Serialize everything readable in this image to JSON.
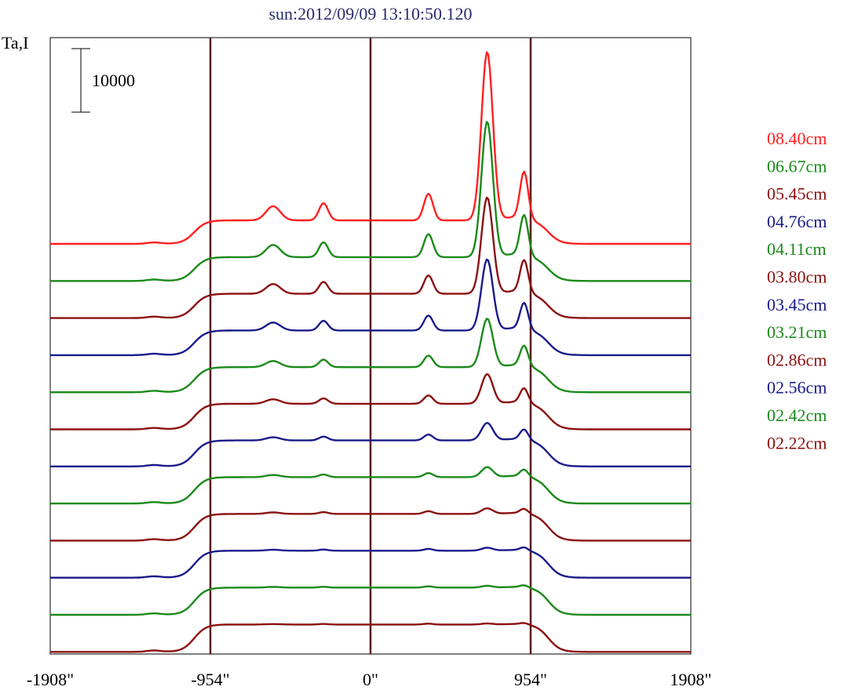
{
  "chart_data": {
    "type": "line",
    "title": "sun:2012/09/09 13:10:50.120",
    "ylabel": "Ta,I",
    "scale_bar": {
      "label": "10000",
      "value": 10000
    },
    "x_ticks": [
      {
        "label": "-1908\"",
        "value": -1908
      },
      {
        "label": "-954\"",
        "value": -954
      },
      {
        "label": "0\"",
        "value": 0
      },
      {
        "label": "954\"",
        "value": 954
      },
      {
        "label": "1908\"",
        "value": 1908
      }
    ],
    "vertical_lines": [
      -954,
      0,
      954
    ],
    "xlim": [
      -1908,
      1908
    ],
    "grid": false,
    "legend_position": "right",
    "legend": [
      {
        "label": "08.40cm",
        "color": "#ff2020"
      },
      {
        "label": "06.67cm",
        "color": "#1a8a1a"
      },
      {
        "label": "05.45cm",
        "color": "#8b1010"
      },
      {
        "label": "04.76cm",
        "color": "#1a1a8a"
      },
      {
        "label": "04.11cm",
        "color": "#1a8a1a"
      },
      {
        "label": "03.80cm",
        "color": "#8b1010"
      },
      {
        "label": "03.45cm",
        "color": "#1a1a8a"
      },
      {
        "label": "03.21cm",
        "color": "#1a8a1a"
      },
      {
        "label": "02.86cm",
        "color": "#8b1010"
      },
      {
        "label": "02.56cm",
        "color": "#1a1a8a"
      },
      {
        "label": "02.42cm",
        "color": "#1a8a1a"
      },
      {
        "label": "02.22cm",
        "color": "#8b1010"
      }
    ],
    "series": [
      {
        "color": "#ff2020",
        "amp": 1.0
      },
      {
        "color": "#1a8a1a",
        "amp": 0.93
      },
      {
        "color": "#8b1010",
        "amp": 0.83
      },
      {
        "color": "#1a1a8a",
        "amp": 0.75
      },
      {
        "color": "#1a8a1a",
        "amp": 0.66
      },
      {
        "color": "#8b1010",
        "amp": 0.56
      },
      {
        "color": "#1a1a8a",
        "amp": 0.47
      },
      {
        "color": "#1a8a1a",
        "amp": 0.39
      },
      {
        "color": "#8b1010",
        "amp": 0.32
      },
      {
        "color": "#1a1a8a",
        "amp": 0.26
      },
      {
        "color": "#1a8a1a",
        "amp": 0.22
      },
      {
        "color": "#8b1010",
        "amp": 0.18
      }
    ]
  }
}
